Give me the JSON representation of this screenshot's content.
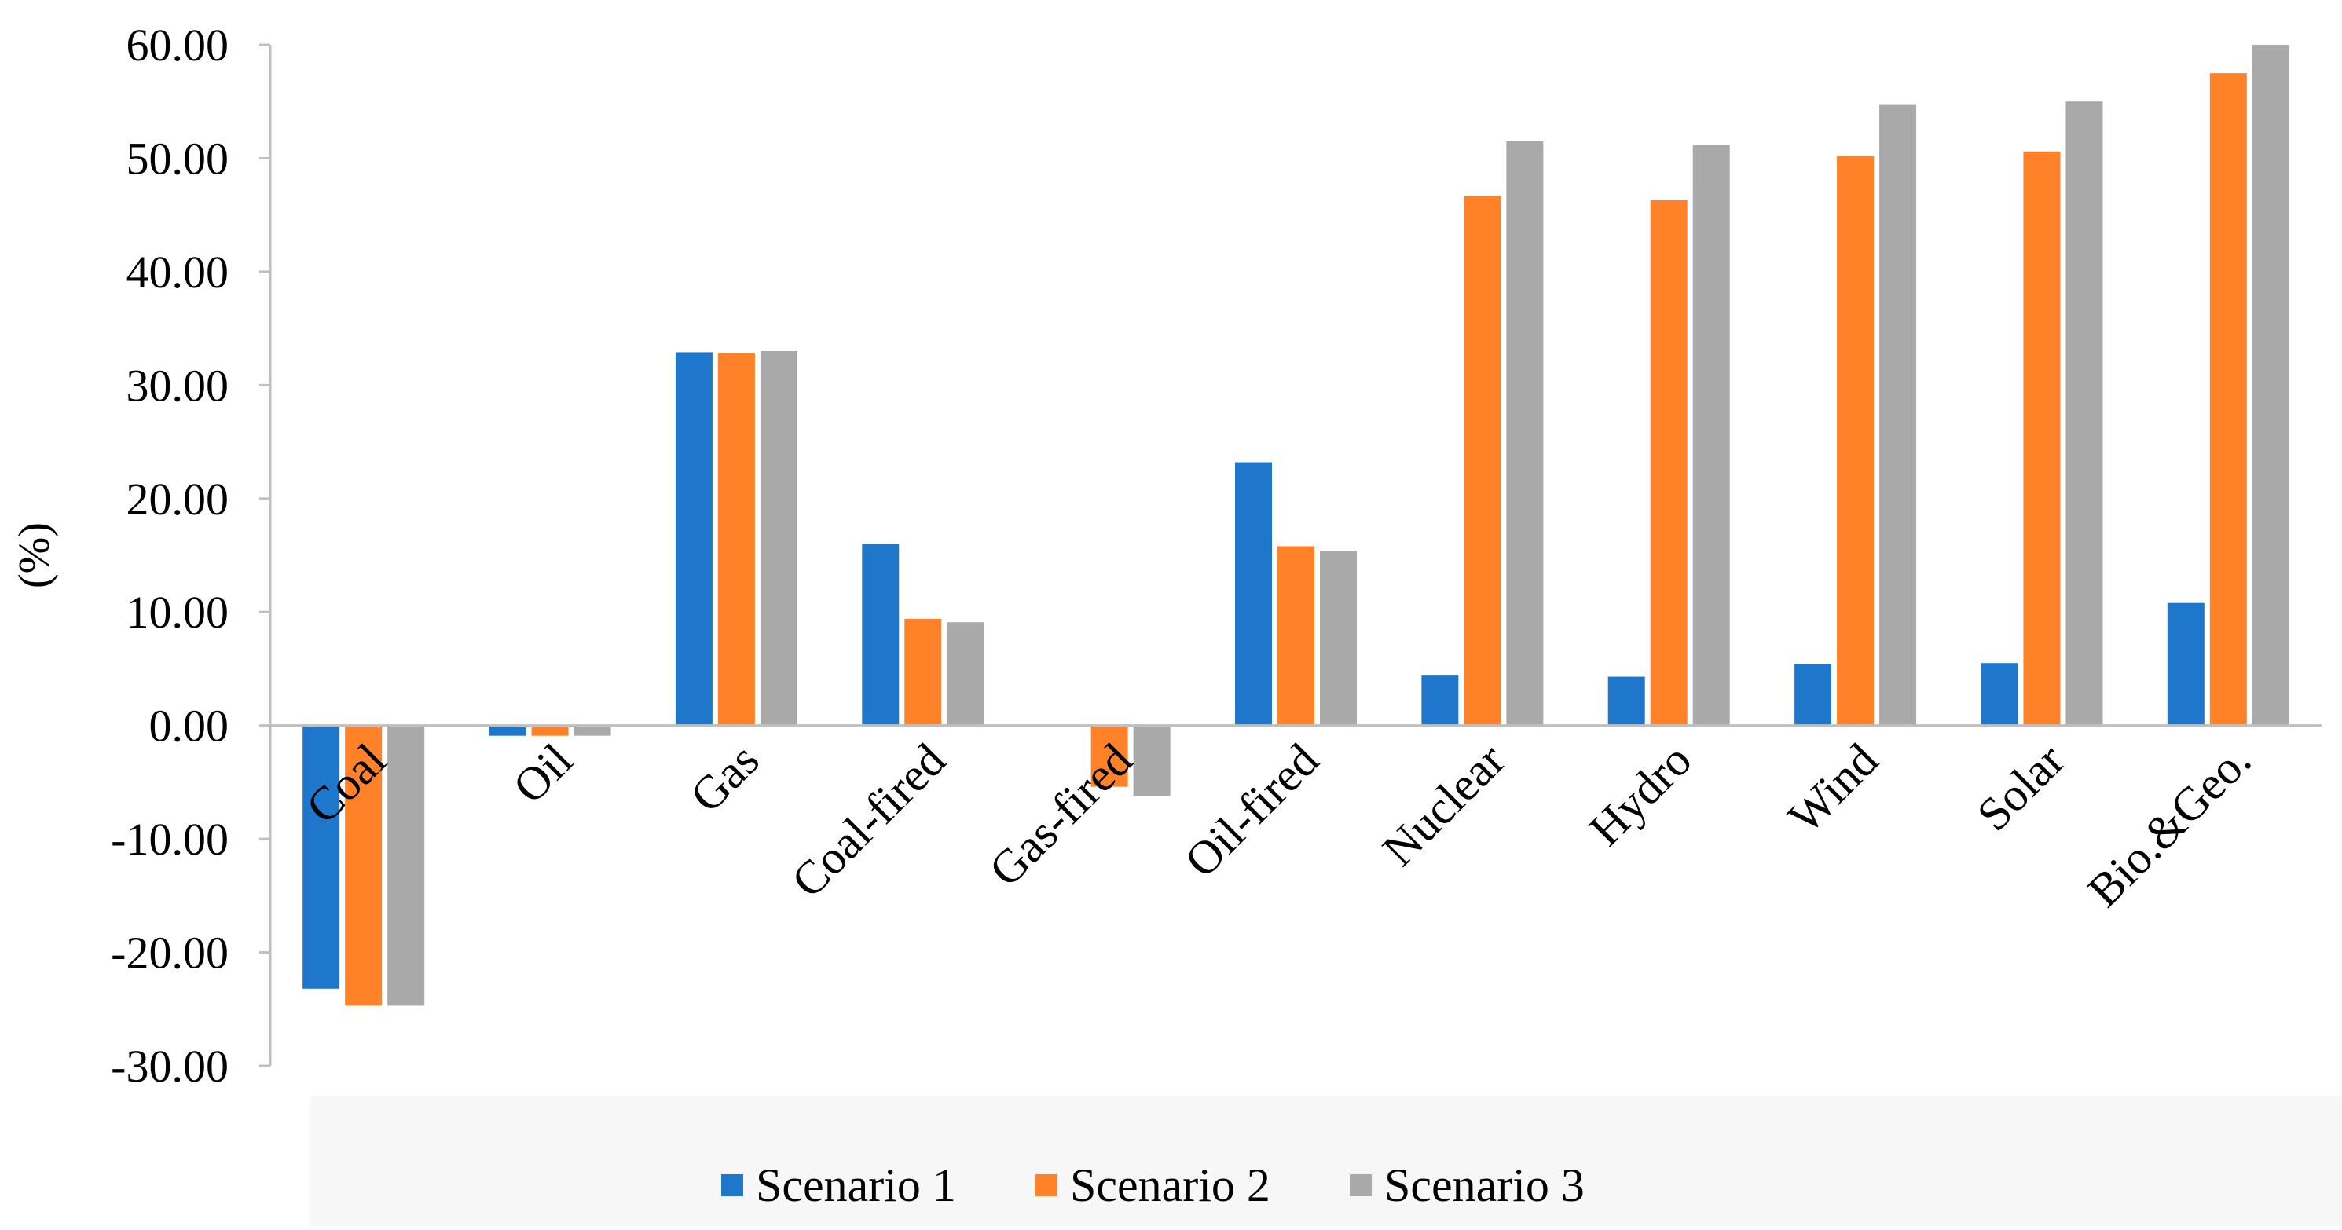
{
  "chart_data": {
    "type": "bar",
    "title": "",
    "xlabel": "",
    "ylabel": "(%)",
    "ylim": [
      -30,
      60
    ],
    "yticks": [
      -30,
      -20,
      -10,
      0,
      10,
      20,
      30,
      40,
      50,
      60
    ],
    "ytick_labels": [
      "-30.00",
      "-20.00",
      "-10.00",
      "0.00",
      "10.00",
      "20.00",
      "30.00",
      "40.00",
      "50.00",
      "60.00"
    ],
    "grid": false,
    "legend_position": "bottom",
    "categories": [
      "Coal",
      "Oil",
      "Gas",
      "Coal-fired",
      "Gas-fired",
      "Oil-fired",
      "Nuclear",
      "Hydro",
      "Wind",
      "Solar",
      "Bio.&Geo."
    ],
    "series": [
      {
        "name": "Scenario 1",
        "color": "#1f77cc",
        "values": [
          -23.2,
          -0.9,
          32.9,
          16.0,
          0.0,
          23.2,
          4.4,
          4.3,
          5.4,
          5.5,
          10.8
        ]
      },
      {
        "name": "Scenario 2",
        "color": "#ff8228",
        "values": [
          -24.7,
          -0.9,
          32.8,
          9.4,
          -5.4,
          15.8,
          46.7,
          46.3,
          50.2,
          50.6,
          57.5
        ]
      },
      {
        "name": "Scenario 3",
        "color": "#a9a9a9",
        "values": [
          -24.7,
          -0.9,
          33.0,
          9.1,
          -6.2,
          15.4,
          51.5,
          51.2,
          54.7,
          55.0,
          60.0
        ]
      }
    ]
  }
}
